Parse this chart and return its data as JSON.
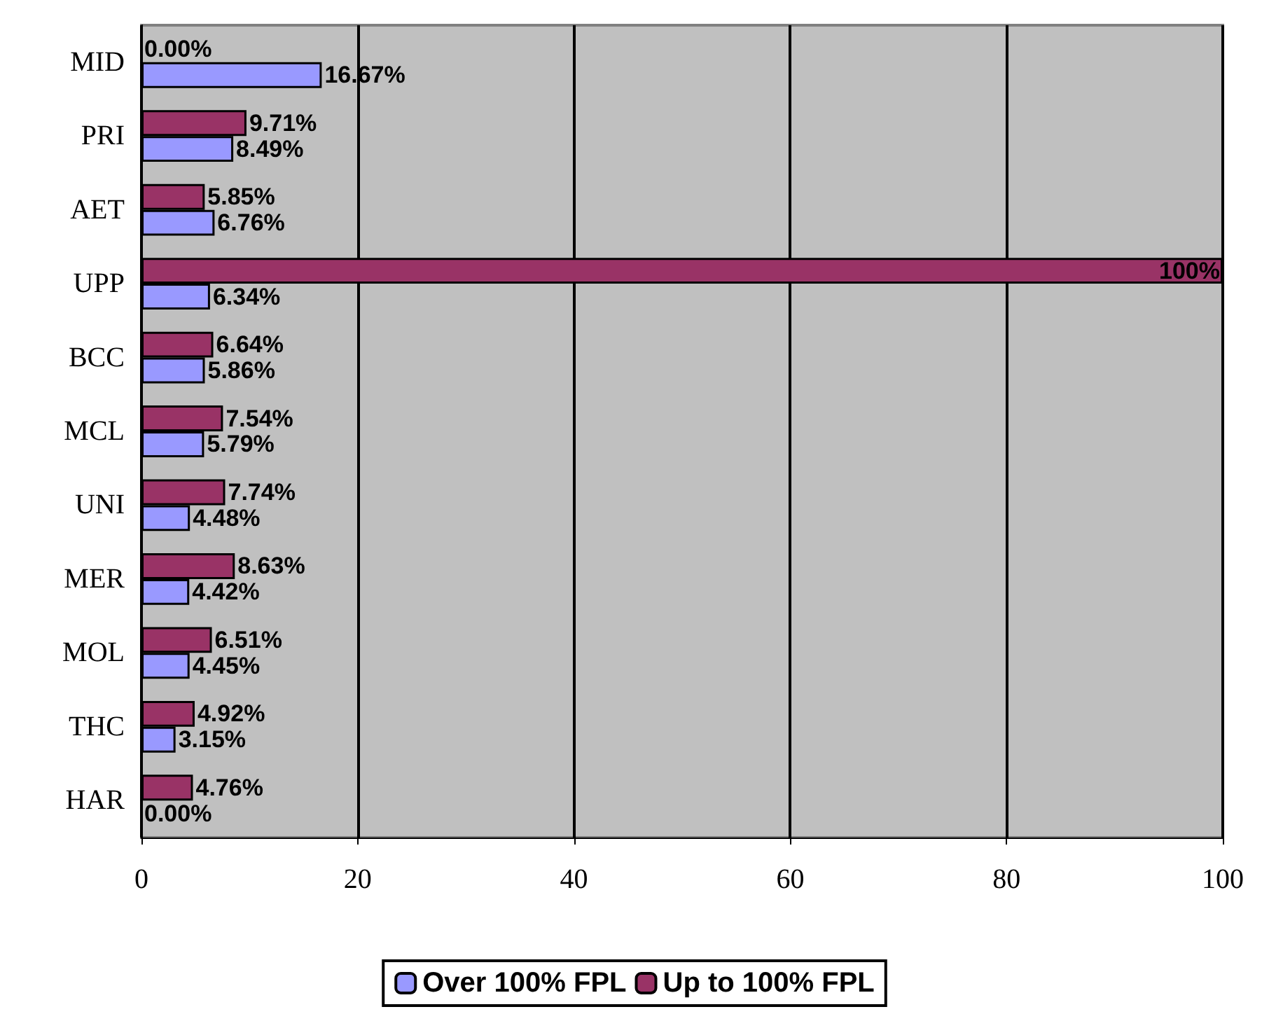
{
  "chart_data": {
    "type": "bar",
    "orientation": "horizontal",
    "categories": [
      "MID",
      "PRI",
      "AET",
      "UPP",
      "BCC",
      "MCL",
      "UNI",
      "MER",
      "MOL",
      "THC",
      "HAR"
    ],
    "series": [
      {
        "name": "Up to 100% FPL",
        "color": "#993366",
        "values": [
          0,
          9.71,
          5.85,
          100,
          6.64,
          7.54,
          7.74,
          8.63,
          6.51,
          4.92,
          4.76
        ],
        "value_labels": [
          "0.00%",
          "9.71%",
          "5.85%",
          "100%",
          "6.64%",
          "7.54%",
          "7.74%",
          "8.63%",
          "6.51%",
          "4.92%",
          "4.76%"
        ]
      },
      {
        "name": "Over 100% FPL",
        "color": "#9999ff",
        "values": [
          16.67,
          8.49,
          6.76,
          6.34,
          5.86,
          5.79,
          4.48,
          4.42,
          4.45,
          3.15,
          0
        ],
        "value_labels": [
          "16.67%",
          "8.49%",
          "6.76%",
          "6.34%",
          "5.86%",
          "5.79%",
          "4.48%",
          "4.42%",
          "4.45%",
          "3.15%",
          "0.00%"
        ]
      }
    ],
    "xlim": [
      0,
      100
    ],
    "xticks": [
      0,
      20,
      40,
      60,
      80,
      100
    ],
    "grid": "x",
    "legend": "bottom"
  }
}
